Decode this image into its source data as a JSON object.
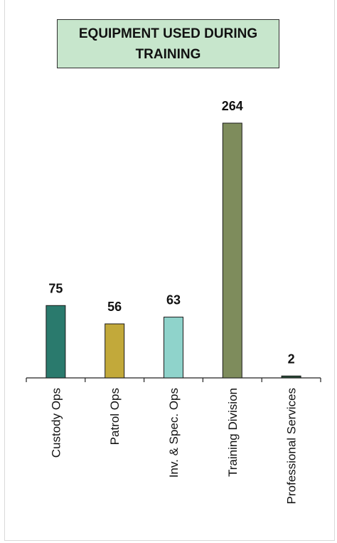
{
  "chart_data": {
    "type": "bar",
    "title": "EQUIPMENT USED DURING TRAINING",
    "categories": [
      "Custody Ops",
      "Patrol Ops",
      "Inv. & Spec. Ops",
      "Training Division",
      "Professional Services"
    ],
    "values": [
      75,
      56,
      63,
      264,
      2
    ],
    "colors": [
      "#2a7a6d",
      "#c2a93a",
      "#8fd3cb",
      "#7e8c5c",
      "#2a4f3a"
    ],
    "xlabel": "",
    "ylabel": "",
    "ylim": [
      0,
      264
    ],
    "grid": false,
    "legend": "none"
  }
}
